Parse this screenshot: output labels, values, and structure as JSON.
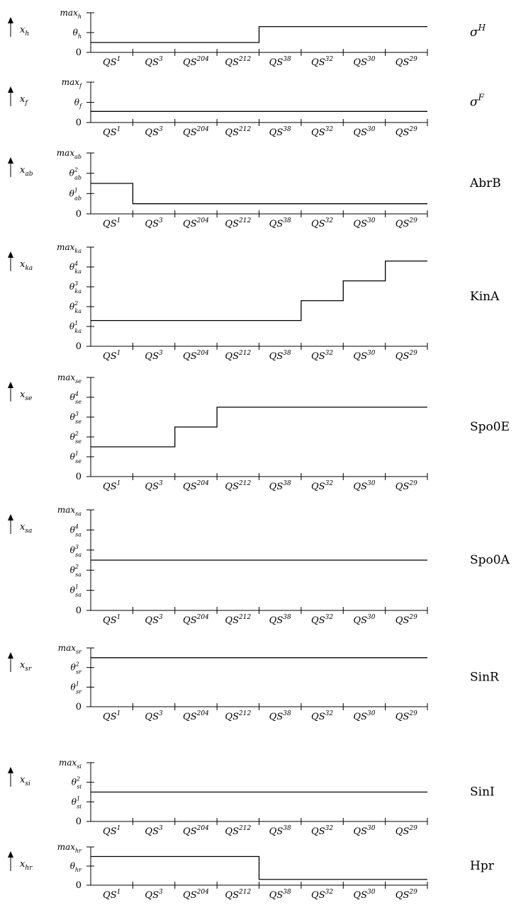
{
  "chart_data": {
    "type": "line",
    "step": true,
    "x_categories": [
      {
        "base": "QS",
        "sup": "1"
      },
      {
        "base": "QS",
        "sup": "3"
      },
      {
        "base": "QS",
        "sup": "204"
      },
      {
        "base": "QS",
        "sup": "212"
      },
      {
        "base": "QS",
        "sup": "38"
      },
      {
        "base": "QS",
        "sup": "32"
      },
      {
        "base": "QS",
        "sup": "30"
      },
      {
        "base": "QS",
        "sup": "29"
      }
    ],
    "panels": [
      {
        "name": "σ",
        "name_sup": "H",
        "ylabel": {
          "base": "x",
          "sub": "h"
        },
        "ticks": [
          {
            "base": "0"
          },
          {
            "base": "θ",
            "sub": "h"
          },
          {
            "base": "max",
            "sub": "h"
          }
        ],
        "values": [
          0.5,
          0.5,
          0.5,
          0.5,
          1.3,
          1.3,
          1.3,
          1.3
        ]
      },
      {
        "name": "σ",
        "name_sup": "F",
        "ylabel": {
          "base": "x",
          "sub": "f"
        },
        "ticks": [
          {
            "base": "0"
          },
          {
            "base": "θ",
            "sub": "f"
          },
          {
            "base": "max",
            "sub": "f"
          }
        ],
        "values": [
          0.55,
          0.55,
          0.55,
          0.55,
          0.55,
          0.55,
          0.55,
          0.55
        ]
      },
      {
        "name": "AbrB",
        "ylabel": {
          "base": "x",
          "sub": "ab"
        },
        "ticks": [
          {
            "base": "0"
          },
          {
            "base": "θ",
            "sub": "ab",
            "sup": "1"
          },
          {
            "base": "θ",
            "sub": "ab",
            "sup": "2"
          },
          {
            "base": "max",
            "sub": "ab"
          }
        ],
        "values": [
          1.5,
          0.5,
          0.5,
          0.5,
          0.5,
          0.5,
          0.5,
          0.5
        ]
      },
      {
        "name": "KinA",
        "ylabel": {
          "base": "x",
          "sub": "ka"
        },
        "ticks": [
          {
            "base": "0"
          },
          {
            "base": "θ",
            "sub": "ka",
            "sup": "1"
          },
          {
            "base": "θ",
            "sub": "ka",
            "sup": "2"
          },
          {
            "base": "θ",
            "sub": "ka",
            "sup": "3"
          },
          {
            "base": "θ",
            "sub": "ka",
            "sup": "4"
          },
          {
            "base": "max",
            "sub": "ka"
          }
        ],
        "values": [
          1.3,
          1.3,
          1.3,
          1.3,
          1.3,
          2.3,
          3.3,
          4.3
        ]
      },
      {
        "name": "Spo0E",
        "ylabel": {
          "base": "x",
          "sub": "se"
        },
        "ticks": [
          {
            "base": "0"
          },
          {
            "base": "θ",
            "sub": "se",
            "sup": "1"
          },
          {
            "base": "θ",
            "sub": "se",
            "sup": "2"
          },
          {
            "base": "θ",
            "sub": "se",
            "sup": "3"
          },
          {
            "base": "θ",
            "sub": "se",
            "sup": "4"
          },
          {
            "base": "max",
            "sub": "se"
          }
        ],
        "values": [
          1.5,
          1.5,
          2.5,
          3.5,
          3.5,
          3.5,
          3.5,
          3.5
        ]
      },
      {
        "name": "Spo0A",
        "ylabel": {
          "base": "x",
          "sub": "sa"
        },
        "ticks": [
          {
            "base": "0"
          },
          {
            "base": "θ",
            "sub": "sa",
            "sup": "1"
          },
          {
            "base": "θ",
            "sub": "sa",
            "sup": "2"
          },
          {
            "base": "θ",
            "sub": "sa",
            "sup": "3"
          },
          {
            "base": "θ",
            "sub": "sa",
            "sup": "4"
          },
          {
            "base": "max",
            "sub": "sa"
          }
        ],
        "values": [
          2.5,
          2.5,
          2.5,
          2.5,
          2.5,
          2.5,
          2.5,
          2.5
        ]
      },
      {
        "name": "SinR",
        "ylabel": {
          "base": "x",
          "sub": "sr"
        },
        "ticks": [
          {
            "base": "0"
          },
          {
            "base": "θ",
            "sub": "sr",
            "sup": "1"
          },
          {
            "base": "θ",
            "sub": "sr",
            "sup": "2"
          },
          {
            "base": "max",
            "sub": "sr"
          }
        ],
        "values": [
          2.5,
          2.5,
          2.5,
          2.5,
          2.5,
          2.5,
          2.5,
          2.5
        ]
      },
      {
        "name": "SinI",
        "ylabel": {
          "base": "x",
          "sub": "si"
        },
        "ticks": [
          {
            "base": "0"
          },
          {
            "base": "θ",
            "sub": "si",
            "sup": "1"
          },
          {
            "base": "θ",
            "sub": "si",
            "sup": "2"
          },
          {
            "base": "max",
            "sub": "si"
          }
        ],
        "values": [
          1.5,
          1.5,
          1.5,
          1.5,
          1.5,
          1.5,
          1.5,
          1.5
        ]
      },
      {
        "name": "Hpr",
        "ylabel": {
          "base": "x",
          "sub": "hr"
        },
        "ticks": [
          {
            "base": "0"
          },
          {
            "base": "θ",
            "sub": "hr"
          },
          {
            "base": "max",
            "sub": "hr"
          }
        ],
        "values": [
          1.5,
          1.5,
          1.5,
          1.5,
          0.3,
          0.3,
          0.3,
          0.3
        ]
      }
    ]
  }
}
